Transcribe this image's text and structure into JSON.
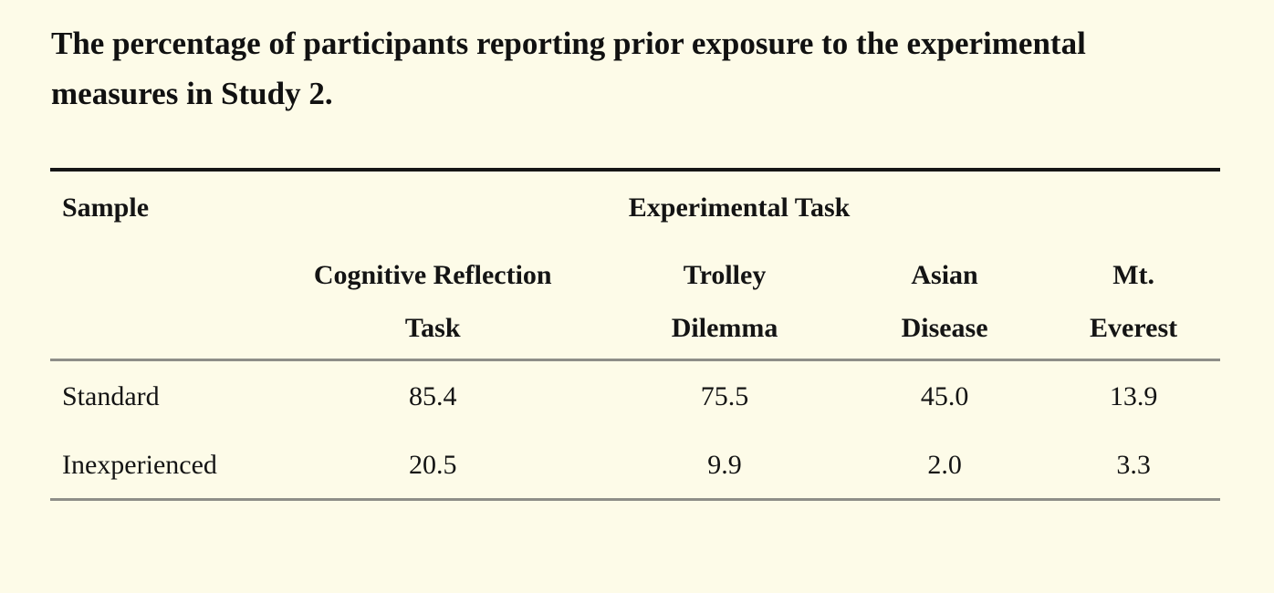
{
  "table": {
    "title": "The percentage of participants reporting prior exposure to the experimental measures in Study 2.",
    "corner_header": "Sample",
    "group_header": "Experimental Task",
    "columns": [
      {
        "line1": "Cognitive Reflection",
        "line2": "Task"
      },
      {
        "line1": "Trolley",
        "line2": "Dilemma"
      },
      {
        "line1": "Asian",
        "line2": "Disease"
      },
      {
        "line1": "Mt.",
        "line2": "Everest"
      }
    ],
    "rows": [
      {
        "label": "Standard",
        "values": [
          "85.4",
          "75.5",
          "45.0",
          "13.9"
        ]
      },
      {
        "label": "Inexperienced",
        "values": [
          "20.5",
          "9.9",
          "2.0",
          "3.3"
        ]
      }
    ],
    "colors": {
      "background": "#fdfbe8",
      "text": "#141414",
      "top_rule": "#161616",
      "inner_rule": "#8e8e88"
    }
  },
  "chart_data": {
    "type": "table",
    "title": "The percentage of participants reporting prior exposure to the experimental measures in Study 2.",
    "row_header": "Sample",
    "group_header": "Experimental Task",
    "categories": [
      "Cognitive Reflection Task",
      "Trolley Dilemma",
      "Asian Disease",
      "Mt. Everest"
    ],
    "series": [
      {
        "name": "Standard",
        "values": [
          85.4,
          75.5,
          45.0,
          13.9
        ]
      },
      {
        "name": "Inexperienced",
        "values": [
          20.5,
          9.9,
          2.0,
          3.3
        ]
      }
    ]
  }
}
